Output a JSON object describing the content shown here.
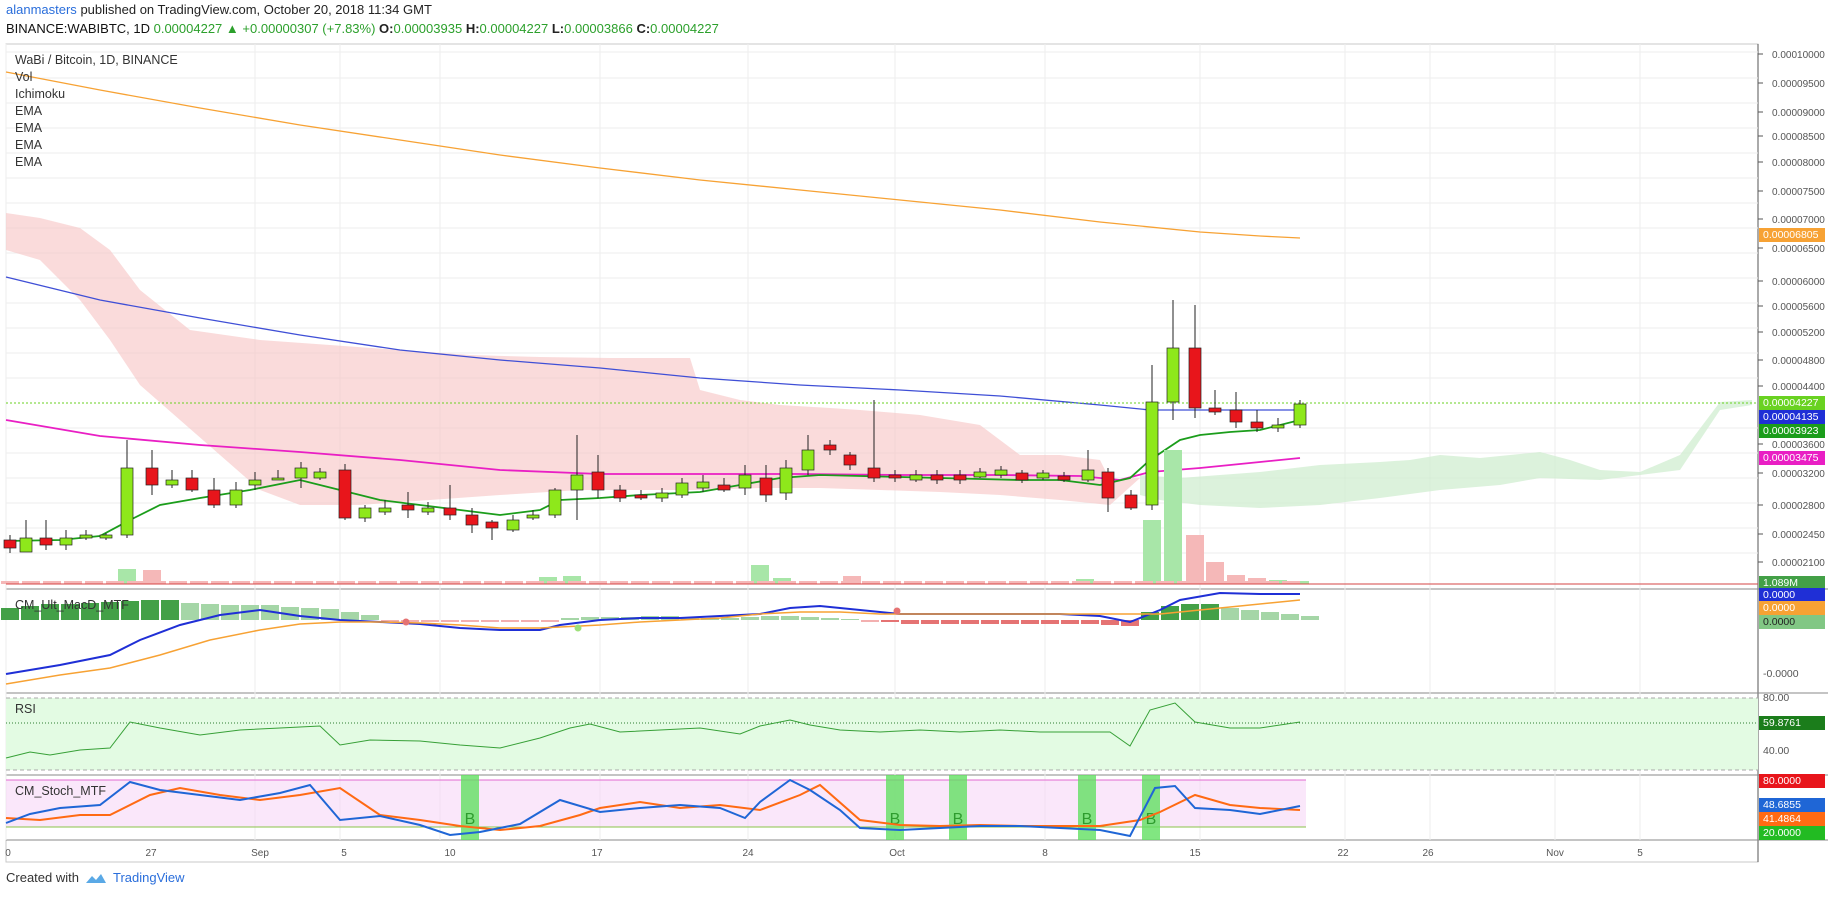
{
  "header": {
    "author": "alanmasters",
    "published": "published on TradingView.com, October 20, 2018 11:34 GMT",
    "symbol": "BINANCE:WABIBTC, 1D",
    "last": "0.00004227",
    "change": "+0.00000307 (+7.83%)",
    "o_label": "O:",
    "o": "0.00003935",
    "h_label": "H:",
    "h": "0.00004227",
    "l_label": "L:",
    "l": "0.00003866",
    "c_label": "C:",
    "c": "0.00004227"
  },
  "legend": {
    "title": "WaBi / Bitcoin, 1D, BINANCE",
    "items": [
      "Vol",
      "Ichimoku",
      "EMA",
      "EMA",
      "EMA",
      "EMA"
    ]
  },
  "panes": {
    "macd": "CM_Ult_MacD_MTF",
    "rsi": "RSI",
    "stoch": "CM_Stoch_MTF"
  },
  "price_axis": [
    "0.00010000",
    "0.00009500",
    "0.00009000",
    "0.00008500",
    "0.00008000",
    "0.00007500",
    "0.00007000",
    "0.00006500",
    "0.00006000",
    "0.00005600",
    "0.00005200",
    "0.00004800",
    "0.00004400",
    "0.00003600",
    "0.00003200",
    "0.00002800",
    "0.00002450",
    "0.00002100"
  ],
  "tags": {
    "ema200": "0.00006805",
    "last": "0.00004227",
    "ema100": "0.00004135",
    "ema_short": "0.00003923",
    "ema50": "0.00003475",
    "vol": "1.089M",
    "macd1": "0.0000",
    "macd2": "0.0000",
    "macd3": "0.0000",
    "macd_axis": "-0.0000",
    "rsi_top": "80.00",
    "rsi_val": "59.8761",
    "rsi_mid": "40.00",
    "stoch_top": "80.0000",
    "stoch_k": "48.6855",
    "stoch_d": "41.4864",
    "stoch_bot": "20.0000"
  },
  "colors": {
    "ema200": "#f7a234",
    "ema100": "#3f4fd6",
    "ema50": "#e91fc4",
    "ema_short": "#1b9d1b",
    "up": "#8ee81b",
    "down": "#e8151b",
    "last": "#69d221"
  },
  "time_axis": [
    "0",
    "27",
    "Sep",
    "5",
    "10",
    "17",
    "24",
    "Oct",
    "8",
    "15",
    "22",
    "26",
    "Nov",
    "5"
  ],
  "footer": {
    "created": "Created with",
    "brand": "TradingView"
  },
  "buy_marker": "B"
}
